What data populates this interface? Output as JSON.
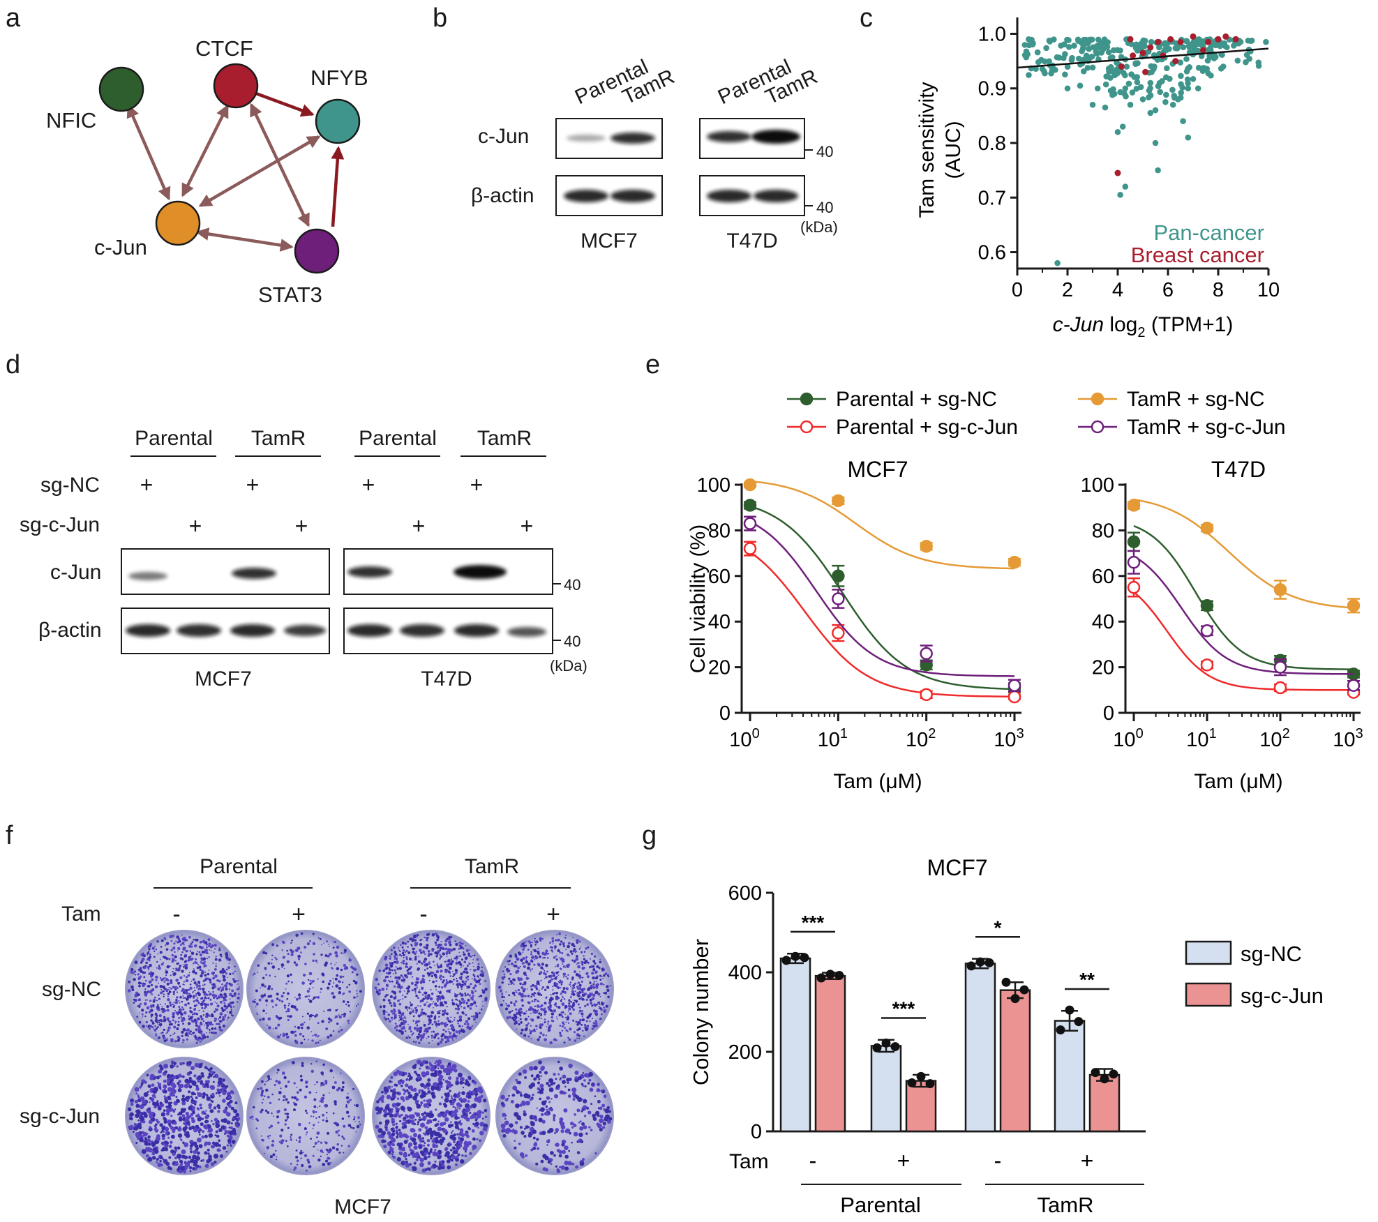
{
  "panel_letters": {
    "a": "a",
    "b": "b",
    "c": "c",
    "d": "d",
    "e": "e",
    "f": "f",
    "g": "g"
  },
  "colors": {
    "green": "#2e5e2e",
    "red": "#a81e2e",
    "teal": "#3f958b",
    "orange": "#e08f28",
    "purple": "#6e1f7a",
    "edge": "#8b5a5a",
    "edge_dark": "#8a1a22",
    "orange_line": "#e59a35",
    "bright_red": "#f02a2a",
    "bar_blue": "#d4dfef",
    "bar_red": "#eb9292"
  },
  "network": {
    "nodes": {
      "nfic": "NFIC",
      "ctcf": "CTCF",
      "nfyb": "NFYB",
      "cjun": "c-Jun",
      "stat3": "STAT3"
    }
  },
  "blot_b": {
    "col1": "Parental",
    "col2": "TamR",
    "row1": "c-Jun",
    "row2": "β-actin",
    "marker1": "40",
    "marker2": "40",
    "unit": "(kDa)",
    "cell1": "MCF7",
    "cell2": "T47D"
  },
  "blot_d": {
    "group1": "Parental",
    "group2": "TamR",
    "group3": "Parental",
    "group4": "TamR",
    "row_sgnc": "sg-NC",
    "row_sgcjun": "sg-c-Jun",
    "plus": "+",
    "row1": "c-Jun",
    "row2": "β-actin",
    "marker1": "40",
    "marker2": "40",
    "unit": "(kDa)",
    "cell1": "MCF7",
    "cell2": "T47D"
  },
  "plates_f": {
    "group1": "Parental",
    "group2": "TamR",
    "tam_label": "Tam",
    "minus": "-",
    "plus": "+",
    "row1": "sg-NC",
    "row2": "sg-c-Jun",
    "caption": "MCF7"
  },
  "chart_data": [
    {
      "panel": "c",
      "type": "scatter",
      "xlabel_italic": "c-Jun",
      "xlabel_rest": " log",
      "xlabel_sub": "2",
      "xlabel_tail": " (TPM+1)",
      "ylabel_line1": "Tam sensitivity",
      "ylabel_line2": "(AUC)",
      "xlim": [
        0,
        10
      ],
      "ylim": [
        0.57,
        1.03
      ],
      "xticks": [
        "0",
        "2",
        "4",
        "6",
        "8",
        "10"
      ],
      "yticks": [
        "1.0",
        "0.9",
        "0.8",
        "0.7",
        "0.6"
      ],
      "legend": [
        "Pan-cancer",
        "Breast cancer"
      ],
      "trend_line": {
        "x": [
          0,
          10
        ],
        "y": [
          0.938,
          0.973
        ]
      },
      "series": [
        {
          "name": "Pan-cancer",
          "points": [
            [
              1.6,
              0.58
            ],
            [
              4.3,
              0.72
            ],
            [
              4.1,
              0.705
            ],
            [
              5.6,
              0.75
            ],
            [
              4.0,
              0.82
            ],
            [
              4.2,
              0.83
            ],
            [
              5.5,
              0.8
            ],
            [
              5.3,
              0.855
            ],
            [
              5.5,
              0.86
            ],
            [
              6.8,
              0.81
            ],
            [
              6.6,
              0.84
            ],
            [
              3.0,
              0.87
            ],
            [
              3.5,
              0.865
            ],
            [
              4.5,
              0.87
            ],
            [
              5.9,
              0.875
            ],
            [
              6.2,
              0.87
            ],
            [
              5.0,
              0.88
            ],
            [
              6.4,
              0.88
            ],
            [
              2.0,
              0.9
            ],
            [
              2.5,
              0.905
            ],
            [
              3.2,
              0.9
            ],
            [
              4.3,
              0.9
            ],
            [
              5.3,
              0.91
            ],
            [
              6.8,
              0.9
            ],
            [
              7.2,
              0.9
            ],
            [
              8.2,
              0.94
            ],
            [
              9.9,
              0.985
            ]
          ]
        },
        {
          "name": "Breast cancer",
          "points": [
            [
              4.0,
              0.745
            ],
            [
              4.15,
              0.94
            ],
            [
              4.6,
              0.96
            ],
            [
              5.0,
              0.965
            ],
            [
              5.3,
              0.975
            ],
            [
              5.6,
              0.985
            ],
            [
              6.1,
              0.99
            ],
            [
              6.5,
              0.985
            ],
            [
              7.0,
              0.995
            ],
            [
              7.4,
              0.97
            ],
            [
              7.6,
              0.985
            ],
            [
              8.0,
              0.99
            ],
            [
              8.3,
              0.995
            ],
            [
              8.7,
              0.99
            ],
            [
              4.5,
              0.99
            ],
            [
              5.1,
              0.93
            ],
            [
              6.3,
              0.95
            ],
            [
              5.8,
              0.96
            ]
          ]
        }
      ]
    },
    {
      "panel": "e",
      "type": "line",
      "legend": [
        "Parental + sg-NC",
        "Parental + sg-c-Jun",
        "TamR + sg-NC",
        "TamR + sg-c-Jun"
      ],
      "ylabel": "Cell viability (%)",
      "xlabel": "Tam (μM)",
      "x": [
        1,
        10,
        100,
        1000
      ],
      "xticks_base": "10",
      "xtick_exp": [
        "0",
        "1",
        "2",
        "3"
      ],
      "yticks": [
        "0",
        "20",
        "40",
        "60",
        "80",
        "100"
      ],
      "ylim": [
        0,
        100
      ],
      "charts": [
        {
          "title": "MCF7",
          "series": [
            {
              "name": "Parental + sg-NC",
              "values": [
                91,
                60,
                21,
                11
              ],
              "err": [
                1.5,
                4.5,
                2,
                2
              ],
              "fit": {
                "top": 95,
                "bottom": 10,
                "logec50": 1.05,
                "hill": 1.2
              }
            },
            {
              "name": "Parental + sg-c-Jun",
              "values": [
                72,
                35,
                8,
                7
              ],
              "err": [
                3,
                3.5,
                1.5,
                1
              ],
              "fit": {
                "top": 82,
                "bottom": 7,
                "logec50": 0.62,
                "hill": 1.2
              }
            },
            {
              "name": "TamR + sg-NC",
              "values": [
                100,
                93,
                73,
                66
              ],
              "err": [
                1,
                1.5,
                1.5,
                1.5
              ],
              "fit": {
                "top": 103,
                "bottom": 63,
                "logec50": 1.2,
                "hill": 1.2
              }
            },
            {
              "name": "TamR + sg-c-Jun",
              "values": [
                83,
                50,
                26,
                12
              ],
              "err": [
                3,
                4,
                3.5,
                2.5
              ],
              "fit": {
                "top": 91,
                "bottom": 16,
                "logec50": 0.75,
                "hill": 1.3
              }
            }
          ]
        },
        {
          "title": "T47D",
          "series": [
            {
              "name": "Parental + sg-NC",
              "values": [
                75,
                47,
                23,
                17
              ],
              "err": [
                4,
                2,
                2,
                1.5
              ],
              "fit": {
                "top": 86,
                "bottom": 19,
                "logec50": 0.85,
                "hill": 1.4
              }
            },
            {
              "name": "Parental + sg-c-Jun",
              "values": [
                55,
                21,
                11,
                9
              ],
              "err": [
                4,
                1.5,
                1.5,
                1
              ],
              "fit": {
                "top": 62,
                "bottom": 10,
                "logec50": 0.45,
                "hill": 1.5
              }
            },
            {
              "name": "TamR + sg-NC",
              "values": [
                91,
                81,
                54,
                47
              ],
              "err": [
                1.5,
                1.5,
                4,
                3
              ],
              "fit": {
                "top": 96,
                "bottom": 45,
                "logec50": 1.3,
                "hill": 1.0
              }
            },
            {
              "name": "TamR + sg-c-Jun",
              "values": [
                66,
                36,
                20,
                12
              ],
              "err": [
                5,
                2,
                3.5,
                2
              ],
              "fit": {
                "top": 75,
                "bottom": 17,
                "logec50": 0.65,
                "hill": 1.4
              }
            }
          ]
        }
      ]
    },
    {
      "panel": "g",
      "type": "bar",
      "title": "MCF7",
      "ylabel": "Colony number",
      "ylim": [
        0,
        600
      ],
      "yticks": [
        "0",
        "200",
        "400",
        "600"
      ],
      "legend": [
        "sg-NC",
        "sg-c-Jun"
      ],
      "tam_label": "Tam",
      "tam_values": [
        "-",
        "+",
        "-",
        "+"
      ],
      "group_labels": [
        "Parental",
        "TamR"
      ],
      "significance": [
        "***",
        "***",
        "*",
        "**"
      ],
      "series": [
        {
          "name": "sg-NC",
          "values": [
            435,
            215,
            422,
            278
          ],
          "err": [
            12,
            15,
            12,
            25
          ],
          "points": [
            [
              430,
              440,
              437
            ],
            [
              210,
              222,
              213
            ],
            [
              416,
              426,
              424
            ],
            [
              255,
              305,
              276
            ]
          ]
        },
        {
          "name": "sg-c-Jun",
          "values": [
            391,
            127,
            355,
            142
          ],
          "err": [
            8,
            15,
            20,
            15
          ],
          "points": [
            [
              386,
              395,
              392
            ],
            [
              122,
              138,
              120
            ],
            [
              375,
              334,
              356
            ],
            [
              148,
              132,
              144
            ]
          ]
        }
      ]
    }
  ]
}
